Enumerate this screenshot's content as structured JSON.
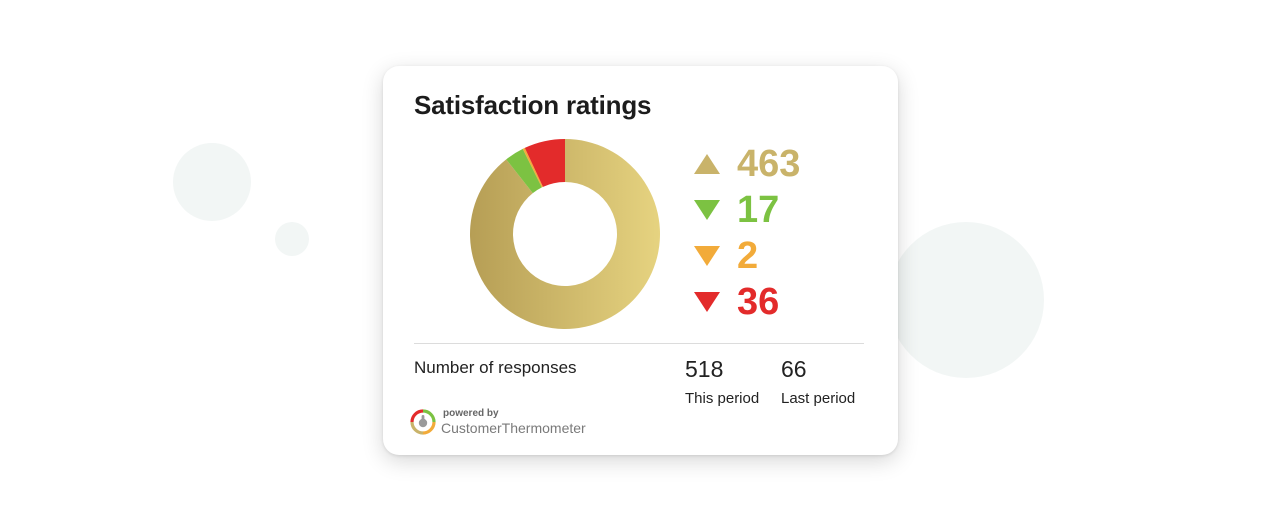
{
  "card": {
    "title": "Satisfaction ratings"
  },
  "chart_data": {
    "type": "pie",
    "variant": "donut",
    "segments": [
      {
        "value": 463,
        "color": "#c9b36a",
        "arrow": "up"
      },
      {
        "value": 17,
        "color": "#7cc242",
        "arrow": "down"
      },
      {
        "value": 2,
        "color": "#f2ab3a",
        "arrow": "down"
      },
      {
        "value": 36,
        "color": "#e32b2b",
        "arrow": "down"
      }
    ],
    "legend_placement": "right"
  },
  "responses": {
    "label": "Number of responses",
    "this_period": {
      "value": "518",
      "label": "This period"
    },
    "last_period": {
      "value": "66",
      "label": "Last period"
    }
  },
  "branding": {
    "powered_by": "powered by",
    "name": "CustomerThermometer",
    "logo_icon": "customer-thermometer-logo-icon"
  }
}
